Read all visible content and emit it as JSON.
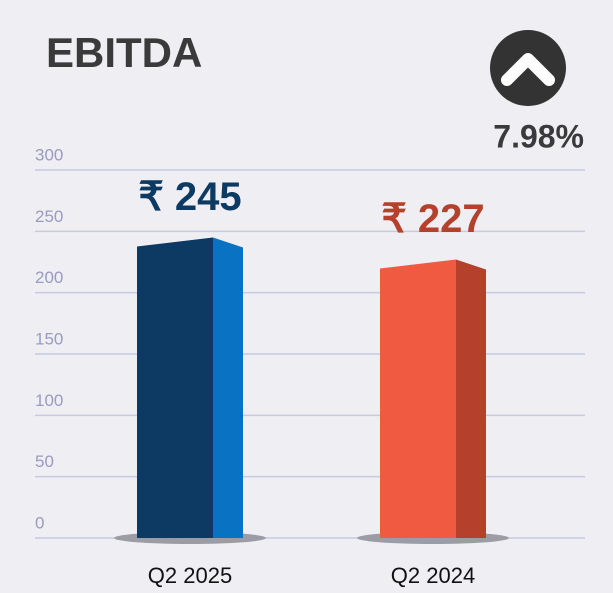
{
  "chart_data": {
    "type": "bar",
    "title": "EBITDA",
    "annotation": "7.98%",
    "categories": [
      "Q2 2025",
      "Q2 2024"
    ],
    "values": [
      245,
      227
    ],
    "value_labels": [
      "₹ 245",
      "₹ 227"
    ],
    "colors": [
      "#0d3a63",
      "#f05a40"
    ],
    "side_colors": [
      "#0a72c2",
      "#b5412d"
    ],
    "label_colors": [
      "#0d3a63",
      "#b5412d"
    ],
    "ylim": [
      0,
      300
    ],
    "yticks": [
      0,
      50,
      100,
      150,
      200,
      250,
      300
    ],
    "grid": true
  }
}
